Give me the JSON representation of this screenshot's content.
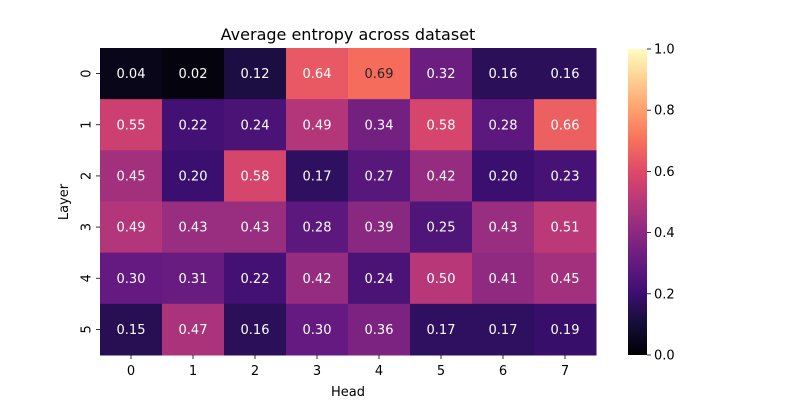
{
  "chart_data": {
    "type": "heatmap",
    "title": "Average entropy across dataset",
    "xlabel": "Head",
    "ylabel": "Layer",
    "x_categories": [
      "0",
      "1",
      "2",
      "3",
      "4",
      "5",
      "6",
      "7"
    ],
    "y_categories": [
      "0",
      "1",
      "2",
      "3",
      "4",
      "5"
    ],
    "values": [
      [
        0.04,
        0.02,
        0.12,
        0.64,
        0.69,
        0.32,
        0.16,
        0.16
      ],
      [
        0.55,
        0.22,
        0.24,
        0.49,
        0.34,
        0.58,
        0.28,
        0.66
      ],
      [
        0.45,
        0.2,
        0.58,
        0.17,
        0.27,
        0.42,
        0.2,
        0.23
      ],
      [
        0.49,
        0.43,
        0.43,
        0.28,
        0.39,
        0.25,
        0.43,
        0.51
      ],
      [
        0.3,
        0.31,
        0.22,
        0.42,
        0.24,
        0.5,
        0.41,
        0.45
      ],
      [
        0.15,
        0.47,
        0.16,
        0.3,
        0.36,
        0.17,
        0.17,
        0.19
      ]
    ],
    "value_format": "0.00",
    "colormap": "magma",
    "colorbar": {
      "range": [
        0.0,
        1.0
      ],
      "ticks": [
        "0.0",
        "0.2",
        "0.4",
        "0.6",
        "0.8",
        "1.0"
      ]
    },
    "grid": false
  }
}
